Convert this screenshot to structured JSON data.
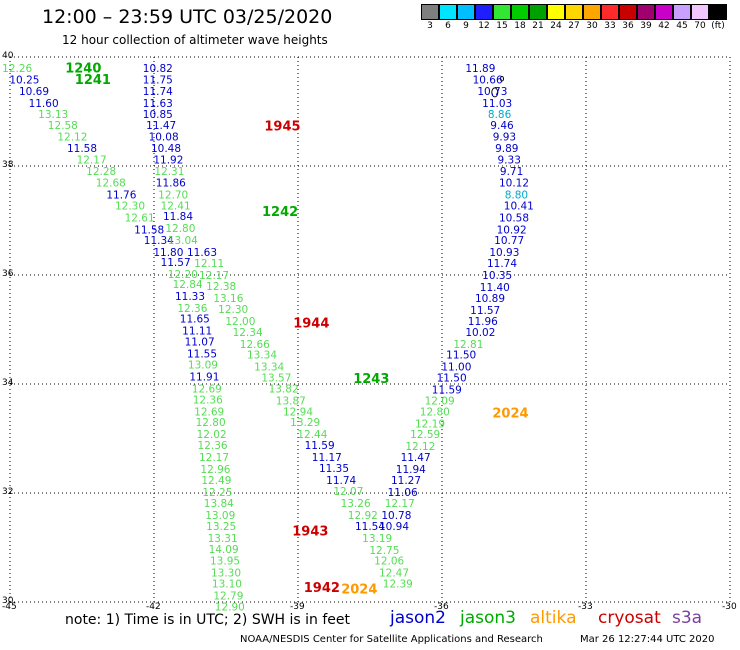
{
  "header": {
    "title": "12:00 – 23:59 UTC 03/25/2020",
    "subtitle": "12 hour collection of altimeter wave heights"
  },
  "colorbar": {
    "colors": [
      "#7f7f7f",
      "#00e5ff",
      "#00bfff",
      "#1e1eff",
      "#33e633",
      "#00cc00",
      "#00a000",
      "#ffff00",
      "#ffd700",
      "#ffa500",
      "#ff2a2a",
      "#c80000",
      "#a0006e",
      "#c800c8",
      "#c8a0ff",
      "#f0c8ff",
      "#000000"
    ],
    "ticks": [
      "3",
      "6",
      "9",
      "12",
      "15",
      "18",
      "21",
      "24",
      "27",
      "30",
      "33",
      "36",
      "39",
      "42",
      "45",
      "70",
      "(ft)"
    ]
  },
  "chart_data": {
    "type": "scatter",
    "xlim": [
      -45,
      -30
    ],
    "ylim": [
      30,
      40
    ],
    "grid": true,
    "x_ticks": [
      "-45",
      "-42",
      "-39",
      "-36",
      "-33",
      "-30"
    ],
    "y_ticks": [
      "40",
      "38",
      "36",
      "34",
      "32",
      "30"
    ],
    "colors": {
      "jason2": "#0000cc",
      "jason3": "#00aa00",
      "altika": "#ff9900",
      "cryosat": "#cc0000",
      "s3a": "#7b3fa0",
      "light": "#55dd55",
      "cyan": "#00aacc"
    },
    "points": [
      {
        "x": -44.85,
        "y": 39.78,
        "label": "12.26",
        "color": "light"
      },
      {
        "x": -44.7,
        "y": 39.57,
        "label": "10.25",
        "color": "jason2"
      },
      {
        "x": -44.5,
        "y": 39.36,
        "label": "10.69",
        "color": "jason2"
      },
      {
        "x": -44.3,
        "y": 39.14,
        "label": "11.60",
        "color": "jason2"
      },
      {
        "x": -44.1,
        "y": 38.94,
        "label": "13.13",
        "color": "light"
      },
      {
        "x": -43.9,
        "y": 38.73,
        "label": "12.58",
        "color": "light"
      },
      {
        "x": -43.7,
        "y": 38.52,
        "label": "12.12",
        "color": "light"
      },
      {
        "x": -43.5,
        "y": 38.31,
        "label": "11.58",
        "color": "jason2"
      },
      {
        "x": -43.3,
        "y": 38.1,
        "label": "12.17",
        "color": "light"
      },
      {
        "x": -43.1,
        "y": 37.89,
        "label": "12.28",
        "color": "light"
      },
      {
        "x": -42.9,
        "y": 37.68,
        "label": "12.68",
        "color": "light"
      },
      {
        "x": -42.68,
        "y": 37.46,
        "label": "11.76",
        "color": "jason2"
      },
      {
        "x": -42.5,
        "y": 37.26,
        "label": "12.30",
        "color": "light"
      },
      {
        "x": -42.3,
        "y": 37.04,
        "label": "12.61",
        "color": "light"
      },
      {
        "x": -42.1,
        "y": 36.82,
        "label": "11.58",
        "color": "jason2"
      },
      {
        "x": -41.9,
        "y": 36.62,
        "label": "11.34",
        "color": "jason2"
      },
      {
        "x": -41.7,
        "y": 36.4,
        "label": "11.80",
        "color": "jason2"
      },
      {
        "x": -41.55,
        "y": 36.22,
        "label": "11.57",
        "color": "jason2"
      },
      {
        "x": -41.4,
        "y": 36.0,
        "label": "12.20",
        "color": "light"
      },
      {
        "x": -41.3,
        "y": 35.82,
        "label": "12.84",
        "color": "light"
      },
      {
        "x": -41.25,
        "y": 35.6,
        "label": "11.33",
        "color": "jason2"
      },
      {
        "x": -41.2,
        "y": 35.38,
        "label": "12.36",
        "color": "light"
      },
      {
        "x": -41.15,
        "y": 35.18,
        "label": "11.65",
        "color": "jason2"
      },
      {
        "x": -41.1,
        "y": 34.96,
        "label": "11.11",
        "color": "jason2"
      },
      {
        "x": -41.05,
        "y": 34.76,
        "label": "11.07",
        "color": "jason2"
      },
      {
        "x": -41.0,
        "y": 34.54,
        "label": "11.55",
        "color": "jason2"
      },
      {
        "x": -40.98,
        "y": 34.34,
        "label": "13.09",
        "color": "light"
      },
      {
        "x": -40.95,
        "y": 34.12,
        "label": "11.91",
        "color": "jason2"
      },
      {
        "x": -40.9,
        "y": 33.9,
        "label": "12.69",
        "color": "light"
      },
      {
        "x": -40.88,
        "y": 33.7,
        "label": "12.36",
        "color": "light"
      },
      {
        "x": -40.85,
        "y": 33.48,
        "label": "12.69",
        "color": "light"
      },
      {
        "x": -40.82,
        "y": 33.28,
        "label": "12.80",
        "color": "light"
      },
      {
        "x": -40.8,
        "y": 33.06,
        "label": "12.02",
        "color": "light"
      },
      {
        "x": -40.78,
        "y": 32.86,
        "label": "12.36",
        "color": "light"
      },
      {
        "x": -40.75,
        "y": 32.64,
        "label": "12.17",
        "color": "light"
      },
      {
        "x": -40.72,
        "y": 32.42,
        "label": "12.96",
        "color": "light"
      },
      {
        "x": -40.7,
        "y": 32.22,
        "label": "12.49",
        "color": "light"
      },
      {
        "x": -40.68,
        "y": 32.0,
        "label": "12.25",
        "color": "light"
      },
      {
        "x": -40.65,
        "y": 31.8,
        "label": "13.84",
        "color": "light"
      },
      {
        "x": -40.62,
        "y": 31.58,
        "label": "13.09",
        "color": "light"
      },
      {
        "x": -40.6,
        "y": 31.38,
        "label": "13.25",
        "color": "light"
      },
      {
        "x": -40.57,
        "y": 31.16,
        "label": "13.31",
        "color": "light"
      },
      {
        "x": -40.55,
        "y": 30.95,
        "label": "14.09",
        "color": "light"
      },
      {
        "x": -40.52,
        "y": 30.74,
        "label": "13.95",
        "color": "light"
      },
      {
        "x": -40.5,
        "y": 30.52,
        "label": "13.30",
        "color": "light"
      },
      {
        "x": -40.48,
        "y": 30.32,
        "label": "13.10",
        "color": "light"
      },
      {
        "x": -40.45,
        "y": 30.1,
        "label": "12.79",
        "color": "light"
      },
      {
        "x": -40.42,
        "y": 29.9,
        "label": "12.90",
        "color": "light"
      },
      {
        "x": -41.92,
        "y": 39.78,
        "label": "10.82",
        "color": "jason2"
      },
      {
        "x": -41.92,
        "y": 39.57,
        "label": "11.75",
        "color": "jason2"
      },
      {
        "x": -41.92,
        "y": 39.36,
        "label": "11.74",
        "color": "jason2"
      },
      {
        "x": -41.92,
        "y": 39.14,
        "label": "11.63",
        "color": "jason2"
      },
      {
        "x": -41.92,
        "y": 38.94,
        "label": "10.85",
        "color": "jason2"
      },
      {
        "x": -41.85,
        "y": 38.73,
        "label": "11.47",
        "color": "jason2"
      },
      {
        "x": -41.8,
        "y": 38.52,
        "label": "10.08",
        "color": "jason2"
      },
      {
        "x": -41.75,
        "y": 38.31,
        "label": "10.48",
        "color": "jason2"
      },
      {
        "x": -41.7,
        "y": 38.1,
        "label": "11.92",
        "color": "jason2"
      },
      {
        "x": -41.68,
        "y": 37.89,
        "label": "12.31",
        "color": "light"
      },
      {
        "x": -41.65,
        "y": 37.68,
        "label": "11.86",
        "color": "jason2"
      },
      {
        "x": -41.6,
        "y": 37.46,
        "label": "12.70",
        "color": "light"
      },
      {
        "x": -41.55,
        "y": 37.26,
        "label": "12.41",
        "color": "light"
      },
      {
        "x": -41.5,
        "y": 37.06,
        "label": "11.84",
        "color": "jason2"
      },
      {
        "x": -41.45,
        "y": 36.84,
        "label": "12.80",
        "color": "light"
      },
      {
        "x": -41.4,
        "y": 36.62,
        "label": "13.04",
        "color": "light"
      },
      {
        "x": -41.0,
        "y": 36.4,
        "label": "11.63",
        "color": "jason2"
      },
      {
        "x": -40.85,
        "y": 36.2,
        "label": "12.11",
        "color": "light"
      },
      {
        "x": -40.75,
        "y": 35.98,
        "label": "12.17",
        "color": "light"
      },
      {
        "x": -40.6,
        "y": 35.78,
        "label": "12.38",
        "color": "light"
      },
      {
        "x": -40.45,
        "y": 35.56,
        "label": "13.16",
        "color": "light"
      },
      {
        "x": -40.35,
        "y": 35.36,
        "label": "12.30",
        "color": "light"
      },
      {
        "x": -40.2,
        "y": 35.14,
        "label": "12.00",
        "color": "light"
      },
      {
        "x": -40.05,
        "y": 34.94,
        "label": "12.34",
        "color": "light"
      },
      {
        "x": -39.9,
        "y": 34.72,
        "label": "12.66",
        "color": "light"
      },
      {
        "x": -39.75,
        "y": 34.52,
        "label": "13.34",
        "color": "light"
      },
      {
        "x": -39.6,
        "y": 34.3,
        "label": "13.34",
        "color": "light"
      },
      {
        "x": -39.45,
        "y": 34.1,
        "label": "13.57",
        "color": "light"
      },
      {
        "x": -39.3,
        "y": 33.9,
        "label": "13.82",
        "color": "light"
      },
      {
        "x": -39.15,
        "y": 33.68,
        "label": "13.87",
        "color": "light"
      },
      {
        "x": -39.0,
        "y": 33.48,
        "label": "12.94",
        "color": "light"
      },
      {
        "x": -38.85,
        "y": 33.28,
        "label": "13.29",
        "color": "light"
      },
      {
        "x": -38.7,
        "y": 33.06,
        "label": "12.44",
        "color": "light"
      },
      {
        "x": -38.55,
        "y": 32.86,
        "label": "11.59",
        "color": "jason2"
      },
      {
        "x": -38.4,
        "y": 32.64,
        "label": "11.17",
        "color": "jason2"
      },
      {
        "x": -38.25,
        "y": 32.44,
        "label": "11.35",
        "color": "jason2"
      },
      {
        "x": -38.1,
        "y": 32.22,
        "label": "11.74",
        "color": "jason2"
      },
      {
        "x": -37.95,
        "y": 32.02,
        "label": "12.07",
        "color": "light"
      },
      {
        "x": -37.8,
        "y": 31.8,
        "label": "13.26",
        "color": "light"
      },
      {
        "x": -37.65,
        "y": 31.58,
        "label": "12.92",
        "color": "light"
      },
      {
        "x": -37.5,
        "y": 31.38,
        "label": "11.54",
        "color": "jason2"
      },
      {
        "x": -37.35,
        "y": 31.16,
        "label": "13.19",
        "color": "light"
      },
      {
        "x": -37.2,
        "y": 30.94,
        "label": "12.75",
        "color": "light"
      },
      {
        "x": -37.1,
        "y": 30.74,
        "label": "12.06",
        "color": "light"
      },
      {
        "x": -37.0,
        "y": 30.52,
        "label": "12.47",
        "color": "light"
      },
      {
        "x": -36.92,
        "y": 30.32,
        "label": "12.39",
        "color": "light"
      },
      {
        "x": -35.2,
        "y": 39.78,
        "label": "11.89",
        "color": "jason2"
      },
      {
        "x": -35.05,
        "y": 39.57,
        "label": "10.66",
        "color": "jason2"
      },
      {
        "x": -34.95,
        "y": 39.36,
        "label": "10.73",
        "color": "jason2"
      },
      {
        "x": -34.85,
        "y": 39.14,
        "label": "11.03",
        "color": "jason2"
      },
      {
        "x": -34.8,
        "y": 38.94,
        "label": "8.86",
        "color": "cyan"
      },
      {
        "x": -34.75,
        "y": 38.73,
        "label": "9.46",
        "color": "jason2"
      },
      {
        "x": -34.7,
        "y": 38.52,
        "label": "9.93",
        "color": "jason2"
      },
      {
        "x": -34.65,
        "y": 38.31,
        "label": "9.89",
        "color": "jason2"
      },
      {
        "x": -34.6,
        "y": 38.1,
        "label": "9.33",
        "color": "jason2"
      },
      {
        "x": -34.55,
        "y": 37.89,
        "label": "9.71",
        "color": "jason2"
      },
      {
        "x": -34.5,
        "y": 37.68,
        "label": "10.12",
        "color": "jason2"
      },
      {
        "x": -34.45,
        "y": 37.46,
        "label": "8.80",
        "color": "cyan"
      },
      {
        "x": -34.4,
        "y": 37.26,
        "label": "10.41",
        "color": "jason2"
      },
      {
        "x": -34.5,
        "y": 37.04,
        "label": "10.58",
        "color": "jason2"
      },
      {
        "x": -34.55,
        "y": 36.82,
        "label": "10.92",
        "color": "jason2"
      },
      {
        "x": -34.6,
        "y": 36.62,
        "label": "10.77",
        "color": "jason2"
      },
      {
        "x": -34.7,
        "y": 36.4,
        "label": "10.93",
        "color": "jason2"
      },
      {
        "x": -34.75,
        "y": 36.2,
        "label": "11.74",
        "color": "jason2"
      },
      {
        "x": -34.85,
        "y": 35.98,
        "label": "10.35",
        "color": "jason2"
      },
      {
        "x": -34.9,
        "y": 35.76,
        "label": "11.40",
        "color": "jason2"
      },
      {
        "x": -35.0,
        "y": 35.56,
        "label": "10.89",
        "color": "jason2"
      },
      {
        "x": -35.1,
        "y": 35.34,
        "label": "11.57",
        "color": "jason2"
      },
      {
        "x": -35.15,
        "y": 35.14,
        "label": "11.96",
        "color": "jason2"
      },
      {
        "x": -35.2,
        "y": 34.94,
        "label": "10.02",
        "color": "jason2"
      },
      {
        "x": -35.45,
        "y": 34.72,
        "label": "12.81",
        "color": "light"
      },
      {
        "x": -35.6,
        "y": 34.52,
        "label": "11.50",
        "color": "jason2"
      },
      {
        "x": -35.7,
        "y": 34.3,
        "label": "11.00",
        "color": "jason2"
      },
      {
        "x": -35.8,
        "y": 34.1,
        "label": "11.50",
        "color": "jason2"
      },
      {
        "x": -35.9,
        "y": 33.88,
        "label": "11.59",
        "color": "jason2"
      },
      {
        "x": -36.05,
        "y": 33.68,
        "label": "12.09",
        "color": "light"
      },
      {
        "x": -36.15,
        "y": 33.48,
        "label": "12.80",
        "color": "light"
      },
      {
        "x": -36.25,
        "y": 33.26,
        "label": "12.19",
        "color": "light"
      },
      {
        "x": -36.35,
        "y": 33.06,
        "label": "12.59",
        "color": "light"
      },
      {
        "x": -36.45,
        "y": 32.84,
        "label": "12.12",
        "color": "light"
      },
      {
        "x": -36.55,
        "y": 32.64,
        "label": "11.47",
        "color": "jason2"
      },
      {
        "x": -36.65,
        "y": 32.42,
        "label": "11.94",
        "color": "jason2"
      },
      {
        "x": -36.75,
        "y": 32.22,
        "label": "11.27",
        "color": "jason2"
      },
      {
        "x": -36.82,
        "y": 32.0,
        "label": "11.06",
        "color": "jason2"
      },
      {
        "x": -36.88,
        "y": 31.8,
        "label": "12.17",
        "color": "light"
      },
      {
        "x": -36.95,
        "y": 31.58,
        "label": "10.78",
        "color": "jason2"
      },
      {
        "x": -37.0,
        "y": 31.38,
        "label": "10.94",
        "color": "jason2"
      }
    ],
    "tracks": [
      {
        "x": -43.85,
        "y": 39.78,
        "label": "1240",
        "color": "jason3"
      },
      {
        "x": -43.65,
        "y": 39.57,
        "label": "1241",
        "color": "jason3"
      },
      {
        "x": -39.7,
        "y": 38.72,
        "label": "1945",
        "color": "cryosat"
      },
      {
        "x": -39.75,
        "y": 37.15,
        "label": "1242",
        "color": "jason3"
      },
      {
        "x": -39.1,
        "y": 35.1,
        "label": "1944",
        "color": "cryosat"
      },
      {
        "x": -37.85,
        "y": 34.08,
        "label": "1243",
        "color": "jason3"
      },
      {
        "x": -34.95,
        "y": 33.45,
        "label": "2024",
        "color": "altika"
      },
      {
        "x": -39.12,
        "y": 31.28,
        "label": "1943",
        "color": "cryosat"
      },
      {
        "x": -38.88,
        "y": 30.25,
        "label": "1942",
        "color": "cryosat"
      },
      {
        "x": -38.1,
        "y": 30.22,
        "label": "2024",
        "color": "altika"
      }
    ]
  },
  "note": "note:  1) Time is in UTC;  2) SWH is in feet",
  "legend": [
    {
      "name": "jason2",
      "color": "#0000cc"
    },
    {
      "name": "jason3",
      "color": "#00aa00"
    },
    {
      "name": "altika",
      "color": "#ff9900"
    },
    {
      "name": "cryosat",
      "color": "#cc0000"
    },
    {
      "name": "s3a",
      "color": "#7b3fa0"
    }
  ],
  "footer": {
    "left": "NOAA/NESDIS Center for Satellite Applications and Research",
    "right": "Mar 26 12:27:44 UTC 2020"
  }
}
